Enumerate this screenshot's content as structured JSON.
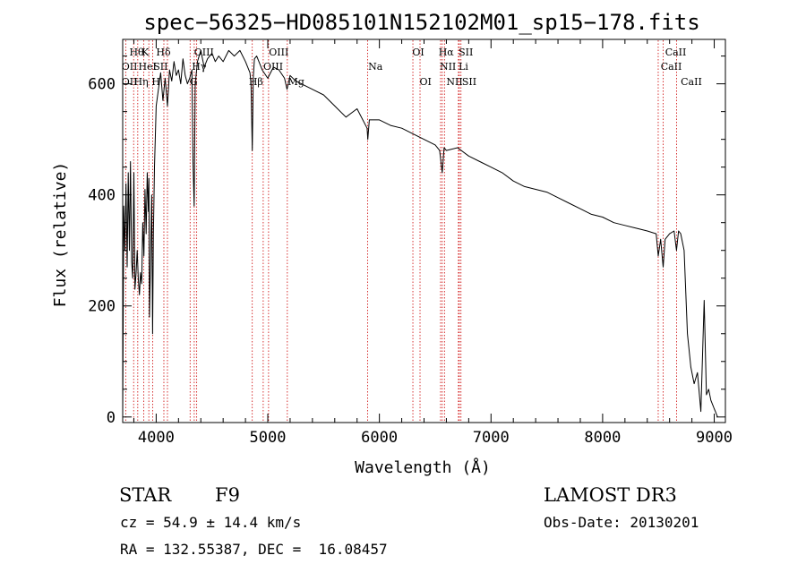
{
  "chart_data": {
    "type": "line",
    "title": "spec−56325−HD085101N152102M01_sp15−178.fits",
    "xlabel": "Wavelength (Å)",
    "ylabel": "Flux (relative)",
    "xlim": [
      3700,
      9100
    ],
    "ylim": [
      -10,
      680
    ],
    "x_ticks": [
      4000,
      5000,
      6000,
      7000,
      8000,
      9000
    ],
    "y_ticks": [
      0,
      200,
      400,
      600
    ],
    "series": [
      {
        "name": "spectrum",
        "x": [
          3700,
          3710,
          3720,
          3730,
          3740,
          3750,
          3760,
          3770,
          3780,
          3790,
          3800,
          3810,
          3820,
          3830,
          3840,
          3850,
          3860,
          3870,
          3880,
          3890,
          3900,
          3910,
          3920,
          3930,
          3935,
          3940,
          3950,
          3960,
          3968,
          3975,
          3985,
          4000,
          4020,
          4040,
          4060,
          4080,
          4101,
          4120,
          4140,
          4160,
          4180,
          4200,
          4220,
          4240,
          4260,
          4280,
          4300,
          4320,
          4330,
          4340,
          4350,
          4370,
          4400,
          4430,
          4460,
          4500,
          4530,
          4560,
          4600,
          4650,
          4700,
          4750,
          4800,
          4840,
          4850,
          4861,
          4870,
          4880,
          4900,
          4950,
          5000,
          5050,
          5100,
          5150,
          5172,
          5200,
          5250,
          5300,
          5400,
          5500,
          5600,
          5700,
          5800,
          5890,
          5896,
          5910,
          6000,
          6100,
          6200,
          6300,
          6400,
          6500,
          6540,
          6563,
          6580,
          6600,
          6700,
          6800,
          6900,
          7000,
          7100,
          7200,
          7300,
          7400,
          7500,
          7600,
          7700,
          7800,
          7900,
          8000,
          8100,
          8200,
          8300,
          8400,
          8480,
          8498,
          8520,
          8542,
          8560,
          8600,
          8640,
          8662,
          8680,
          8700,
          8730,
          8760,
          8790,
          8820,
          8850,
          8880,
          8910,
          8930,
          8950,
          8970,
          8990,
          9000,
          9010,
          9020,
          9030
        ],
        "y": [
          0,
          380,
          300,
          420,
          270,
          440,
          300,
          460,
          280,
          250,
          440,
          230,
          260,
          300,
          250,
          220,
          260,
          240,
          350,
          290,
          410,
          330,
          440,
          370,
          430,
          180,
          290,
          400,
          150,
          330,
          450,
          560,
          590,
          620,
          570,
          610,
          560,
          625,
          605,
          640,
          615,
          625,
          600,
          645,
          615,
          600,
          610,
          625,
          460,
          380,
          600,
          640,
          660,
          630,
          645,
          655,
          640,
          650,
          640,
          660,
          650,
          660,
          640,
          620,
          600,
          480,
          610,
          645,
          650,
          625,
          610,
          630,
          625,
          610,
          590,
          615,
          605,
          600,
          590,
          580,
          560,
          540,
          555,
          520,
          500,
          535,
          535,
          525,
          520,
          510,
          500,
          490,
          480,
          440,
          485,
          480,
          485,
          470,
          460,
          450,
          440,
          425,
          415,
          410,
          405,
          395,
          385,
          375,
          365,
          360,
          350,
          345,
          340,
          335,
          330,
          290,
          320,
          270,
          320,
          330,
          335,
          300,
          335,
          330,
          300,
          150,
          90,
          60,
          80,
          10,
          210,
          40,
          50,
          30,
          20,
          15,
          10,
          5,
          0
        ]
      }
    ],
    "lines": [
      {
        "name": "OII",
        "wavelength": 3727
      },
      {
        "name": "Hθ",
        "wavelength": 3798
      },
      {
        "name": "Hη",
        "wavelength": 3835
      },
      {
        "name": "HeI",
        "wavelength": 3889
      },
      {
        "name": "K",
        "wavelength": 3934
      },
      {
        "name": "H",
        "wavelength": 3968
      },
      {
        "name": "SII",
        "wavelength": 4069
      },
      {
        "name": "Hδ",
        "wavelength": 4101
      },
      {
        "name": "G",
        "wavelength": 4304
      },
      {
        "name": "Hγ",
        "wavelength": 4341
      },
      {
        "name": "OIII",
        "wavelength": 4363
      },
      {
        "name": "Hβ",
        "wavelength": 4861
      },
      {
        "name": "OIII",
        "wavelength": 4959
      },
      {
        "name": "OIII",
        "wavelength": 5007
      },
      {
        "name": "Mg",
        "wavelength": 5175
      },
      {
        "name": "Na",
        "wavelength": 5894
      },
      {
        "name": "OI",
        "wavelength": 6300
      },
      {
        "name": "OI",
        "wavelength": 6364
      },
      {
        "name": "NII",
        "wavelength": 6548
      },
      {
        "name": "Hα",
        "wavelength": 6563
      },
      {
        "name": "NII",
        "wavelength": 6583
      },
      {
        "name": "Li",
        "wavelength": 6708
      },
      {
        "name": "SII",
        "wavelength": 6716
      },
      {
        "name": "SII",
        "wavelength": 6731
      },
      {
        "name": "CaII",
        "wavelength": 8498
      },
      {
        "name": "CaII",
        "wavelength": 8542
      },
      {
        "name": "CaII",
        "wavelength": 8662
      }
    ],
    "line_labels": [
      {
        "text": "Hθ",
        "row": 1,
        "wavelength": 3760
      },
      {
        "text": "K",
        "row": 1,
        "wavelength": 3870
      },
      {
        "text": "Hδ",
        "row": 1,
        "wavelength": 4000
      },
      {
        "text": "OIII",
        "row": 1,
        "wavelength": 4340
      },
      {
        "text": "OIII",
        "row": 1,
        "wavelength": 5010
      },
      {
        "text": "OI",
        "row": 1,
        "wavelength": 6295
      },
      {
        "text": "Hα",
        "row": 1,
        "wavelength": 6530
      },
      {
        "text": "SII",
        "row": 1,
        "wavelength": 6710
      },
      {
        "text": "CaII",
        "row": 1,
        "wavelength": 8560
      },
      {
        "text": "OII",
        "row": 2,
        "wavelength": 3690
      },
      {
        "text": "HeI",
        "row": 2,
        "wavelength": 3840
      },
      {
        "text": "SII",
        "row": 2,
        "wavelength": 3975
      },
      {
        "text": "Hγ",
        "row": 2,
        "wavelength": 4320
      },
      {
        "text": "OIII",
        "row": 2,
        "wavelength": 4960
      },
      {
        "text": "Na",
        "row": 2,
        "wavelength": 5900
      },
      {
        "text": "NII",
        "row": 2,
        "wavelength": 6540
      },
      {
        "text": "Li",
        "row": 2,
        "wavelength": 6710
      },
      {
        "text": "CaII",
        "row": 2,
        "wavelength": 8520
      },
      {
        "text": "OII",
        "row": 3,
        "wavelength": 3690
      },
      {
        "text": "Hη",
        "row": 3,
        "wavelength": 3800
      },
      {
        "text": "H",
        "row": 3,
        "wavelength": 3960
      },
      {
        "text": "G",
        "row": 3,
        "wavelength": 4300
      },
      {
        "text": "Hβ",
        "row": 3,
        "wavelength": 4830
      },
      {
        "text": "Mg",
        "row": 3,
        "wavelength": 5180
      },
      {
        "text": "OI",
        "row": 3,
        "wavelength": 6360
      },
      {
        "text": "NII",
        "row": 3,
        "wavelength": 6600
      },
      {
        "text": "SII",
        "row": 3,
        "wavelength": 6740
      },
      {
        "text": "CaII",
        "row": 3,
        "wavelength": 8700
      }
    ],
    "grid": false
  },
  "info": {
    "object_class": "STAR",
    "subclass": "F9",
    "survey": "LAMOST DR3",
    "velocity": "cz = 54.9 ± 14.4 km/s",
    "obs_date": "Obs-Date: 20130201",
    "coordinates": "RA = 132.55387, DEC =  16.08457"
  },
  "colors": {
    "axis": "#000000",
    "spectrum": "#000000",
    "line_marker": "#cc0000"
  }
}
